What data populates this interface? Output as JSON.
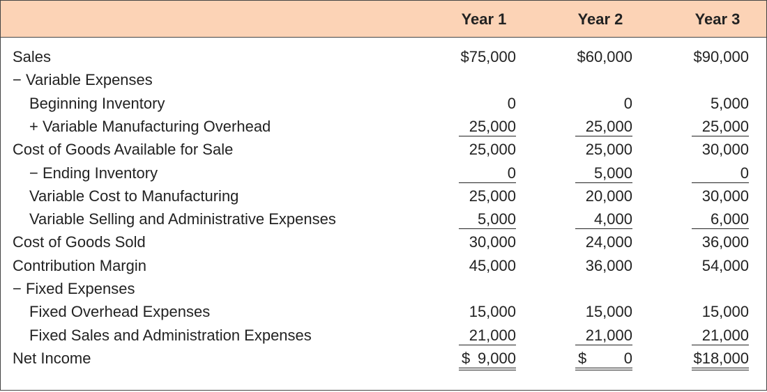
{
  "header": {
    "columns": [
      "Year 1",
      "Year 2",
      "Year 3"
    ]
  },
  "table": {
    "rows": [
      {
        "label": "Sales",
        "values": [
          "$75,000",
          "$60,000",
          "$90,000"
        ]
      },
      {
        "label": "− Variable Expenses",
        "values": []
      },
      {
        "label": "Beginning Inventory",
        "values": [
          "0",
          "0",
          "5,000"
        ]
      },
      {
        "label": "+ Variable Manufacturing Overhead",
        "values": [
          "25,000",
          "25,000",
          "25,000"
        ]
      },
      {
        "label": "Cost of Goods Available for Sale",
        "values": [
          "25,000",
          "25,000",
          "30,000"
        ]
      },
      {
        "label": "− Ending Inventory",
        "values": [
          "0",
          "5,000",
          "0"
        ]
      },
      {
        "label": "Variable Cost to Manufacturing",
        "values": [
          "25,000",
          "20,000",
          "30,000"
        ]
      },
      {
        "label": "Variable Selling and Administrative Expenses",
        "values": [
          "5,000",
          "4,000",
          "6,000"
        ]
      },
      {
        "label": "Cost of Goods Sold",
        "values": [
          "30,000",
          "24,000",
          "36,000"
        ]
      },
      {
        "label": "Contribution Margin",
        "values": [
          "45,000",
          "36,000",
          "54,000"
        ]
      },
      {
        "label": "− Fixed Expenses",
        "values": []
      },
      {
        "label": "Fixed Overhead Expenses",
        "values": [
          "15,000",
          "15,000",
          "15,000"
        ]
      },
      {
        "label": "Fixed Sales and Administration Expenses",
        "values": [
          "21,000",
          "21,000",
          "21,000"
        ]
      },
      {
        "label": "Net Income",
        "values": [
          {
            "symbol": "$",
            "amount": "9,000"
          },
          {
            "symbol": "$",
            "amount": "0"
          },
          "$18,000"
        ]
      }
    ]
  }
}
